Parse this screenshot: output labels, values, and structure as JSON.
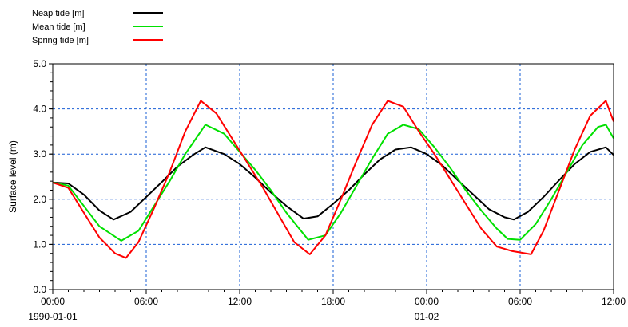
{
  "chart_data": {
    "type": "line",
    "xlabel": "",
    "ylabel": "Surface level (m)",
    "x_unit": "hours",
    "xlim": [
      0,
      36
    ],
    "ylim": [
      0,
      5
    ],
    "y_ticks": [
      "0.0",
      "1.0",
      "2.0",
      "3.0",
      "4.0",
      "5.0"
    ],
    "x_ticks": [
      {
        "value": 0,
        "time": "00:00",
        "date": "1990-01-01"
      },
      {
        "value": 6,
        "time": "06:00",
        "date": ""
      },
      {
        "value": 12,
        "time": "12:00",
        "date": ""
      },
      {
        "value": 18,
        "time": "18:00",
        "date": ""
      },
      {
        "value": 24,
        "time": "00:00",
        "date": "01-02"
      },
      {
        "value": 30,
        "time": "06:00",
        "date": ""
      },
      {
        "value": 36,
        "time": "12:00",
        "date": ""
      }
    ],
    "grid": true,
    "legend_position": "top-left",
    "series": [
      {
        "name": "Neap tide   [m]",
        "color": "#000000",
        "x": [
          0,
          1,
          2,
          3,
          3.9,
          5,
          6,
          7,
          8,
          9,
          9.8,
          11,
          12,
          13,
          14,
          15,
          16.1,
          17,
          18,
          19,
          20,
          21,
          22,
          23,
          24,
          25,
          26,
          27,
          28,
          29,
          29.6,
          30.5,
          31.5,
          32.5,
          33.5,
          34.5,
          35.5,
          36
        ],
        "y": [
          2.37,
          2.35,
          2.1,
          1.75,
          1.55,
          1.72,
          2.05,
          2.38,
          2.72,
          2.98,
          3.15,
          3.0,
          2.78,
          2.48,
          2.15,
          1.85,
          1.57,
          1.62,
          1.9,
          2.2,
          2.55,
          2.88,
          3.1,
          3.15,
          3.0,
          2.75,
          2.42,
          2.1,
          1.78,
          1.6,
          1.55,
          1.72,
          2.05,
          2.42,
          2.78,
          3.05,
          3.15,
          2.98
        ]
      },
      {
        "name": "Mean tide   [m]",
        "color": "#00e000",
        "x": [
          0,
          1,
          2,
          3,
          4.4,
          5.5,
          6.5,
          7.5,
          8.5,
          9.8,
          11,
          12,
          13,
          14,
          15,
          16.4,
          17.5,
          18.5,
          19.5,
          20.5,
          21.5,
          22.5,
          23.5,
          24.5,
          25.5,
          26.5,
          27.5,
          28.5,
          29.2,
          30,
          31,
          32,
          33,
          34,
          35,
          35.5,
          36
        ],
        "y": [
          2.37,
          2.3,
          1.85,
          1.4,
          1.08,
          1.3,
          1.85,
          2.4,
          3.0,
          3.65,
          3.45,
          3.05,
          2.65,
          2.2,
          1.7,
          1.1,
          1.2,
          1.7,
          2.3,
          2.9,
          3.45,
          3.65,
          3.55,
          3.15,
          2.7,
          2.2,
          1.75,
          1.35,
          1.12,
          1.1,
          1.45,
          2.0,
          2.6,
          3.2,
          3.6,
          3.65,
          3.35
        ]
      },
      {
        "name": "Spring tide [m]",
        "color": "#ff0000",
        "x": [
          0,
          1,
          2,
          3,
          4,
          4.7,
          5.5,
          6.5,
          7.5,
          8.5,
          9.5,
          10.5,
          11.5,
          12.5,
          13.5,
          14.5,
          15.5,
          16.5,
          17.5,
          18.5,
          19.5,
          20.5,
          21.5,
          22.5,
          23.5,
          24.5,
          25.5,
          26.5,
          27.5,
          28.5,
          29.5,
          30.7,
          31.5,
          32.5,
          33.5,
          34.5,
          35.5,
          36
        ],
        "y": [
          2.37,
          2.25,
          1.7,
          1.15,
          0.8,
          0.7,
          1.05,
          1.8,
          2.6,
          3.5,
          4.18,
          3.9,
          3.35,
          2.8,
          2.25,
          1.65,
          1.05,
          0.78,
          1.2,
          2.0,
          2.85,
          3.65,
          4.18,
          4.05,
          3.5,
          3.0,
          2.45,
          1.9,
          1.35,
          0.95,
          0.85,
          0.78,
          1.3,
          2.2,
          3.1,
          3.85,
          4.18,
          3.72
        ]
      }
    ]
  }
}
